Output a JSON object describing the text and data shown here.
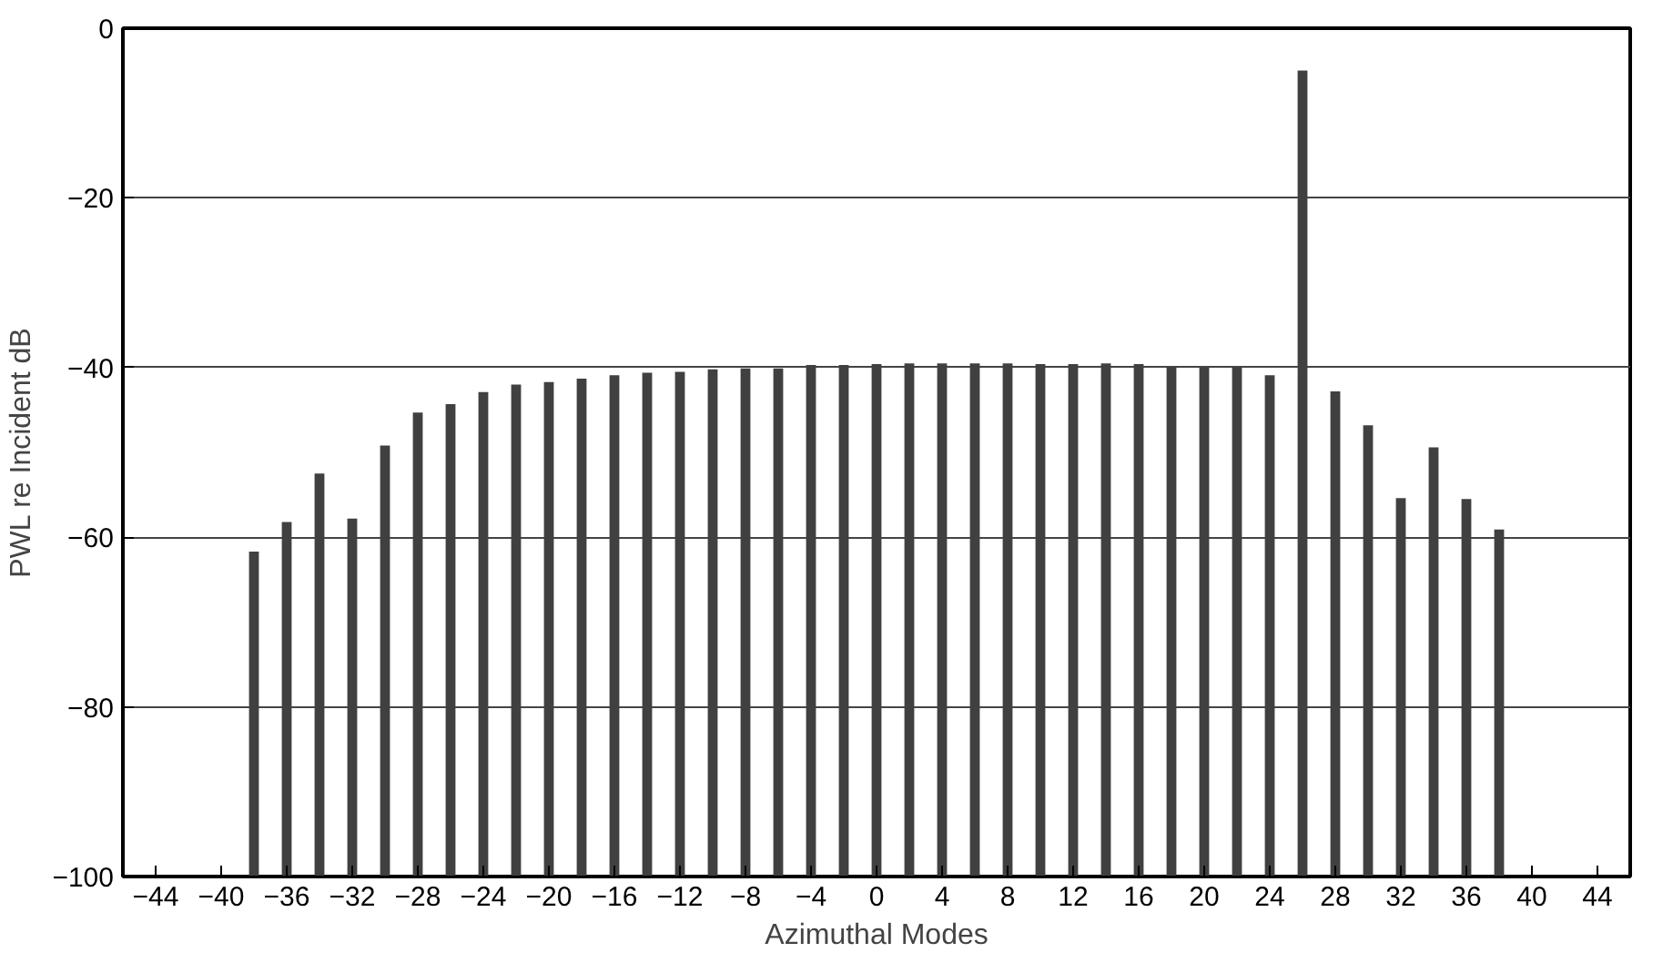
{
  "chart_data": {
    "type": "bar",
    "xlabel": "Azimuthal Modes",
    "ylabel": "PWL re Incident dB",
    "x": [
      -38,
      -36,
      -34,
      -32,
      -30,
      -28,
      -26,
      -24,
      -22,
      -20,
      -18,
      -16,
      -14,
      -12,
      -10,
      -8,
      -6,
      -4,
      -2,
      0,
      2,
      4,
      6,
      8,
      10,
      12,
      14,
      16,
      18,
      20,
      22,
      24,
      26,
      28,
      30,
      32,
      34,
      36,
      38
    ],
    "base": [
      -100,
      -100,
      -100,
      -100,
      -100,
      -100,
      -100,
      -100,
      -100,
      -100,
      -100,
      -100,
      -100,
      -100,
      -100,
      -100,
      -100,
      -100,
      -100,
      -100,
      -100,
      -100,
      -100,
      -100,
      -100,
      -100,
      -100,
      -100,
      -100,
      -100,
      -100,
      -100,
      -100,
      -100,
      -100,
      -100,
      -100,
      -100,
      -100
    ],
    "values": [
      38.3,
      41.8,
      47.5,
      42.2,
      50.8,
      54.7,
      55.7,
      57.1,
      58.0,
      58.3,
      58.7,
      59.1,
      59.4,
      59.5,
      59.8,
      59.9,
      59.9,
      60.3,
      60.3,
      60.4,
      60.5,
      60.5,
      60.5,
      60.5,
      60.4,
      60.4,
      60.5,
      60.4,
      60.1,
      60.0,
      60.0,
      59.1,
      95,
      57.2,
      53.2,
      44.6,
      50.6,
      44.5,
      40.9
    ],
    "color": "#404040",
    "xlim": [
      -46,
      46
    ],
    "xticks": [
      -44,
      -40,
      -36,
      -32,
      -28,
      -24,
      -20,
      -16,
      -12,
      -8,
      -4,
      0,
      4,
      8,
      12,
      16,
      20,
      24,
      28,
      32,
      36,
      40,
      44
    ],
    "ylim": [
      -100,
      0
    ],
    "yticks": [
      -100,
      -80,
      -60,
      -40,
      -20,
      0
    ],
    "grid": "y"
  }
}
